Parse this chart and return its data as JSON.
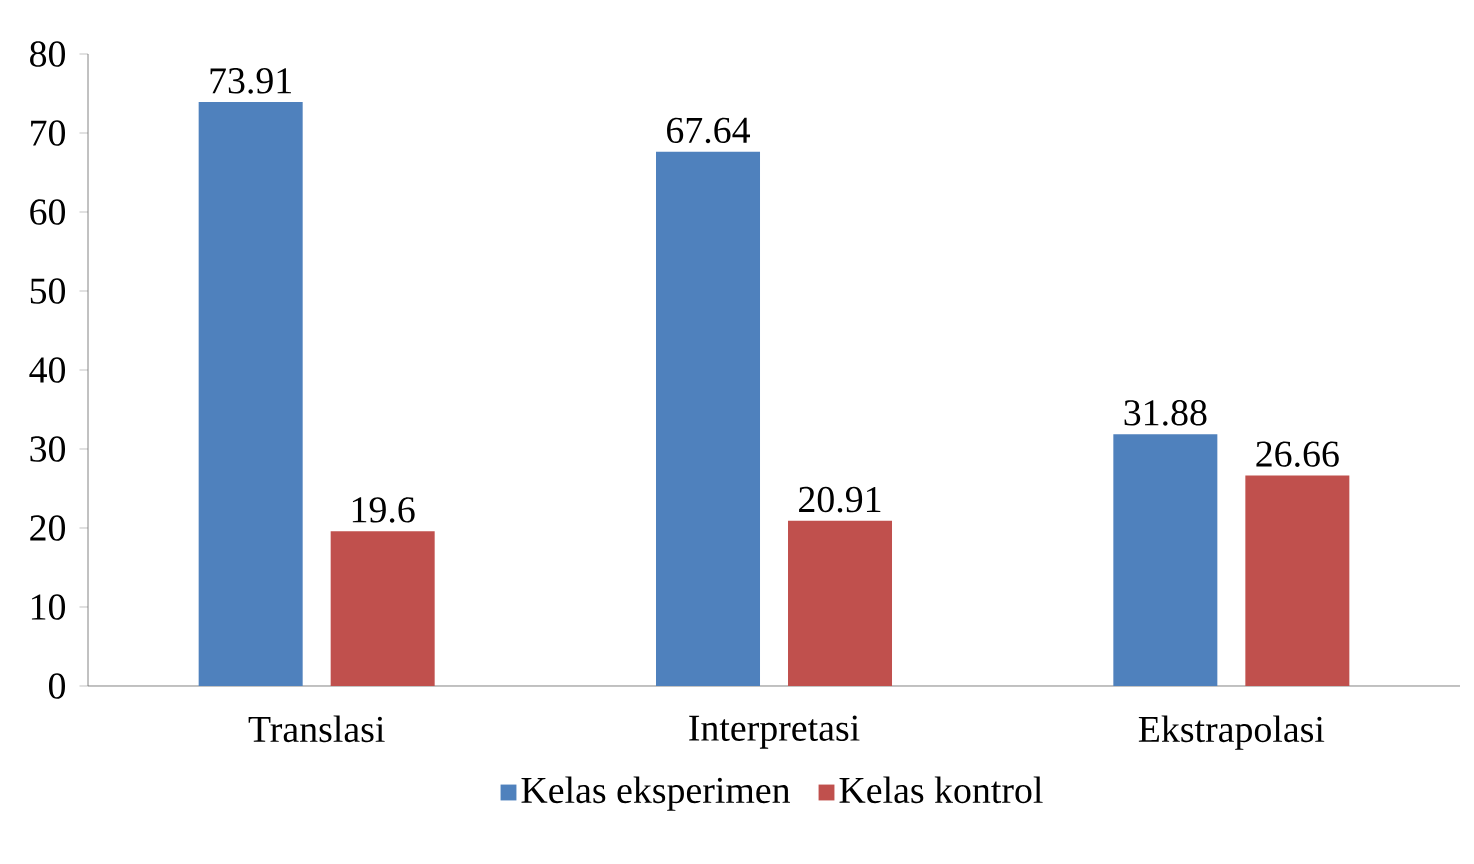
{
  "chart_data": {
    "type": "bar",
    "categories": [
      "Translasi",
      "Interpretasi",
      "Ekstrapolasi"
    ],
    "series": [
      {
        "name": "Kelas eksperimen",
        "color": "#4f81bd",
        "values": [
          73.91,
          67.64,
          31.88
        ]
      },
      {
        "name": "Kelas kontrol",
        "color": "#c0504d",
        "values": [
          19.6,
          20.91,
          26.66
        ]
      }
    ],
    "ylim": [
      0,
      80
    ],
    "yticks": [
      0,
      10,
      20,
      30,
      40,
      50,
      60,
      70,
      80
    ],
    "data_labels": true,
    "legend": "bottom",
    "grid": false
  }
}
